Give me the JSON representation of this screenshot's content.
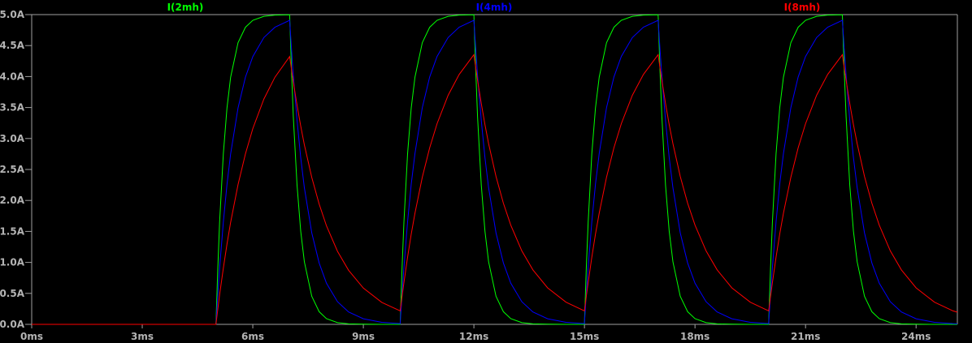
{
  "chart_data": {
    "type": "line",
    "title": "",
    "xlabel": "",
    "ylabel": "",
    "xlim": [
      0,
      25.12
    ],
    "ylim": [
      0,
      5.0
    ],
    "grid": false,
    "legend_placement": "top",
    "x_ticks": [
      "0ms",
      "3ms",
      "6ms",
      "9ms",
      "12ms",
      "15ms",
      "18ms",
      "21ms",
      "24ms"
    ],
    "x_tick_values": [
      0,
      3,
      6,
      9,
      12,
      15,
      18,
      21,
      24
    ],
    "y_ticks": [
      "0.0A",
      "0.5A",
      "1.0A",
      "1.5A",
      "2.0A",
      "2.5A",
      "3.0A",
      "3.5A",
      "4.0A",
      "4.5A",
      "5.0A"
    ],
    "y_tick_values": [
      0,
      0.5,
      1,
      1.5,
      2,
      2.5,
      3,
      3.5,
      4,
      4.5,
      5
    ],
    "colors": {
      "background": "#000000",
      "axis": "#a0a0a0",
      "text": "#b4b4b4"
    },
    "x": [
      0,
      5,
      5.05,
      5.1,
      5.2,
      5.3,
      5.4,
      5.6,
      5.8,
      6.0,
      6.3,
      6.6,
      7.0,
      7.05,
      7.1,
      7.2,
      7.3,
      7.4,
      7.6,
      7.8,
      8.0,
      8.3,
      8.6,
      9.0,
      9.5,
      10.0,
      10.05,
      10.1,
      10.2,
      10.3,
      10.4,
      10.6,
      10.8,
      11.0,
      11.3,
      11.6,
      12.0,
      12.05,
      12.1,
      12.2,
      12.3,
      12.4,
      12.6,
      12.8,
      13.0,
      13.3,
      13.6,
      14.0,
      14.5,
      15.0,
      15.05,
      15.1,
      15.2,
      15.3,
      15.4,
      15.6,
      15.8,
      16.0,
      16.3,
      16.6,
      17.0,
      17.05,
      17.1,
      17.2,
      17.3,
      17.4,
      17.6,
      17.8,
      18.0,
      18.3,
      18.6,
      19.0,
      19.5,
      20.0,
      20.05,
      20.1,
      20.2,
      20.3,
      20.4,
      20.6,
      20.8,
      21.0,
      21.3,
      21.6,
      22.0,
      22.05,
      22.1,
      22.2,
      22.3,
      22.4,
      22.6,
      22.8,
      23.0,
      23.3,
      23.6,
      24.0,
      24.5,
      25.0,
      25.12
    ],
    "series": [
      {
        "name": "I(2mh)",
        "color": "#00ff00",
        "values": [
          0,
          0,
          0.906,
          1.648,
          2.753,
          3.494,
          3.991,
          4.546,
          4.796,
          4.908,
          4.972,
          4.992,
          4.998,
          4.094,
          3.352,
          2.247,
          1.506,
          1.01,
          0.454,
          0.204,
          0.092,
          0.028,
          0.008,
          0.002,
          0.0,
          0.0,
          0.906,
          1.648,
          2.753,
          3.494,
          3.991,
          4.546,
          4.796,
          4.908,
          4.972,
          4.992,
          4.998,
          4.094,
          3.352,
          2.247,
          1.506,
          1.01,
          0.454,
          0.204,
          0.092,
          0.028,
          0.008,
          0.002,
          0.0,
          0.0,
          0.906,
          1.648,
          2.753,
          3.494,
          3.991,
          4.546,
          4.796,
          4.908,
          4.972,
          4.992,
          4.998,
          4.094,
          3.352,
          2.247,
          1.506,
          1.01,
          0.454,
          0.204,
          0.092,
          0.028,
          0.008,
          0.002,
          0.0,
          0.0,
          0.906,
          1.648,
          2.753,
          3.494,
          3.991,
          4.546,
          4.796,
          4.908,
          4.972,
          4.992,
          4.998,
          4.094,
          3.352,
          2.247,
          1.506,
          1.01,
          0.454,
          0.204,
          0.092,
          0.028,
          0.008,
          0.002,
          0.0,
          0.0,
          0.0
        ]
      },
      {
        "name": "I(4mh)",
        "color": "#0000ff",
        "values": [
          0,
          0,
          0.476,
          0.906,
          1.648,
          2.256,
          2.753,
          3.494,
          3.991,
          4.323,
          4.629,
          4.796,
          4.908,
          4.441,
          4.018,
          3.29,
          2.694,
          2.205,
          1.478,
          0.991,
          0.664,
          0.365,
          0.2,
          0.09,
          0.033,
          0.012,
          0.487,
          0.916,
          1.656,
          2.263,
          2.758,
          3.498,
          3.993,
          4.325,
          4.63,
          4.797,
          4.908,
          4.441,
          4.018,
          3.29,
          2.694,
          2.205,
          1.478,
          0.991,
          0.664,
          0.365,
          0.2,
          0.09,
          0.033,
          0.012,
          0.487,
          0.916,
          1.656,
          2.263,
          2.758,
          3.498,
          3.993,
          4.325,
          4.63,
          4.797,
          4.908,
          4.441,
          4.018,
          3.29,
          2.694,
          2.205,
          1.478,
          0.991,
          0.664,
          0.365,
          0.2,
          0.09,
          0.033,
          0.012,
          0.487,
          0.916,
          1.656,
          2.263,
          2.758,
          3.498,
          3.993,
          4.325,
          4.63,
          4.797,
          4.908,
          4.441,
          4.018,
          3.29,
          2.694,
          2.205,
          1.478,
          0.991,
          0.664,
          0.365,
          0.2,
          0.09,
          0.033,
          0.012,
          0.01
        ]
      },
      {
        "name": "I(8mh)",
        "color": "#ff0000",
        "values": [
          0,
          0,
          0.244,
          0.476,
          0.906,
          1.296,
          1.648,
          2.256,
          2.753,
          3.161,
          3.637,
          3.99,
          4.323,
          4.112,
          3.912,
          3.539,
          3.203,
          2.898,
          2.373,
          1.942,
          1.59,
          1.178,
          0.873,
          0.585,
          0.355,
          0.217,
          0.45,
          0.672,
          1.084,
          1.457,
          1.794,
          2.375,
          2.851,
          3.24,
          3.697,
          4.034,
          4.353,
          4.141,
          3.939,
          3.564,
          3.225,
          2.918,
          2.389,
          1.956,
          1.601,
          1.186,
          0.879,
          0.589,
          0.357,
          0.217,
          0.45,
          0.672,
          1.084,
          1.457,
          1.794,
          2.375,
          2.851,
          3.24,
          3.697,
          4.034,
          4.353,
          4.141,
          3.939,
          3.564,
          3.225,
          2.918,
          2.389,
          1.956,
          1.601,
          1.186,
          0.879,
          0.589,
          0.357,
          0.217,
          0.45,
          0.672,
          1.084,
          1.457,
          1.794,
          2.375,
          2.851,
          3.24,
          3.697,
          4.034,
          4.353,
          4.141,
          3.939,
          3.564,
          3.225,
          2.918,
          2.389,
          1.956,
          1.601,
          1.186,
          0.879,
          0.589,
          0.357,
          0.217,
          0.196
        ]
      }
    ]
  }
}
